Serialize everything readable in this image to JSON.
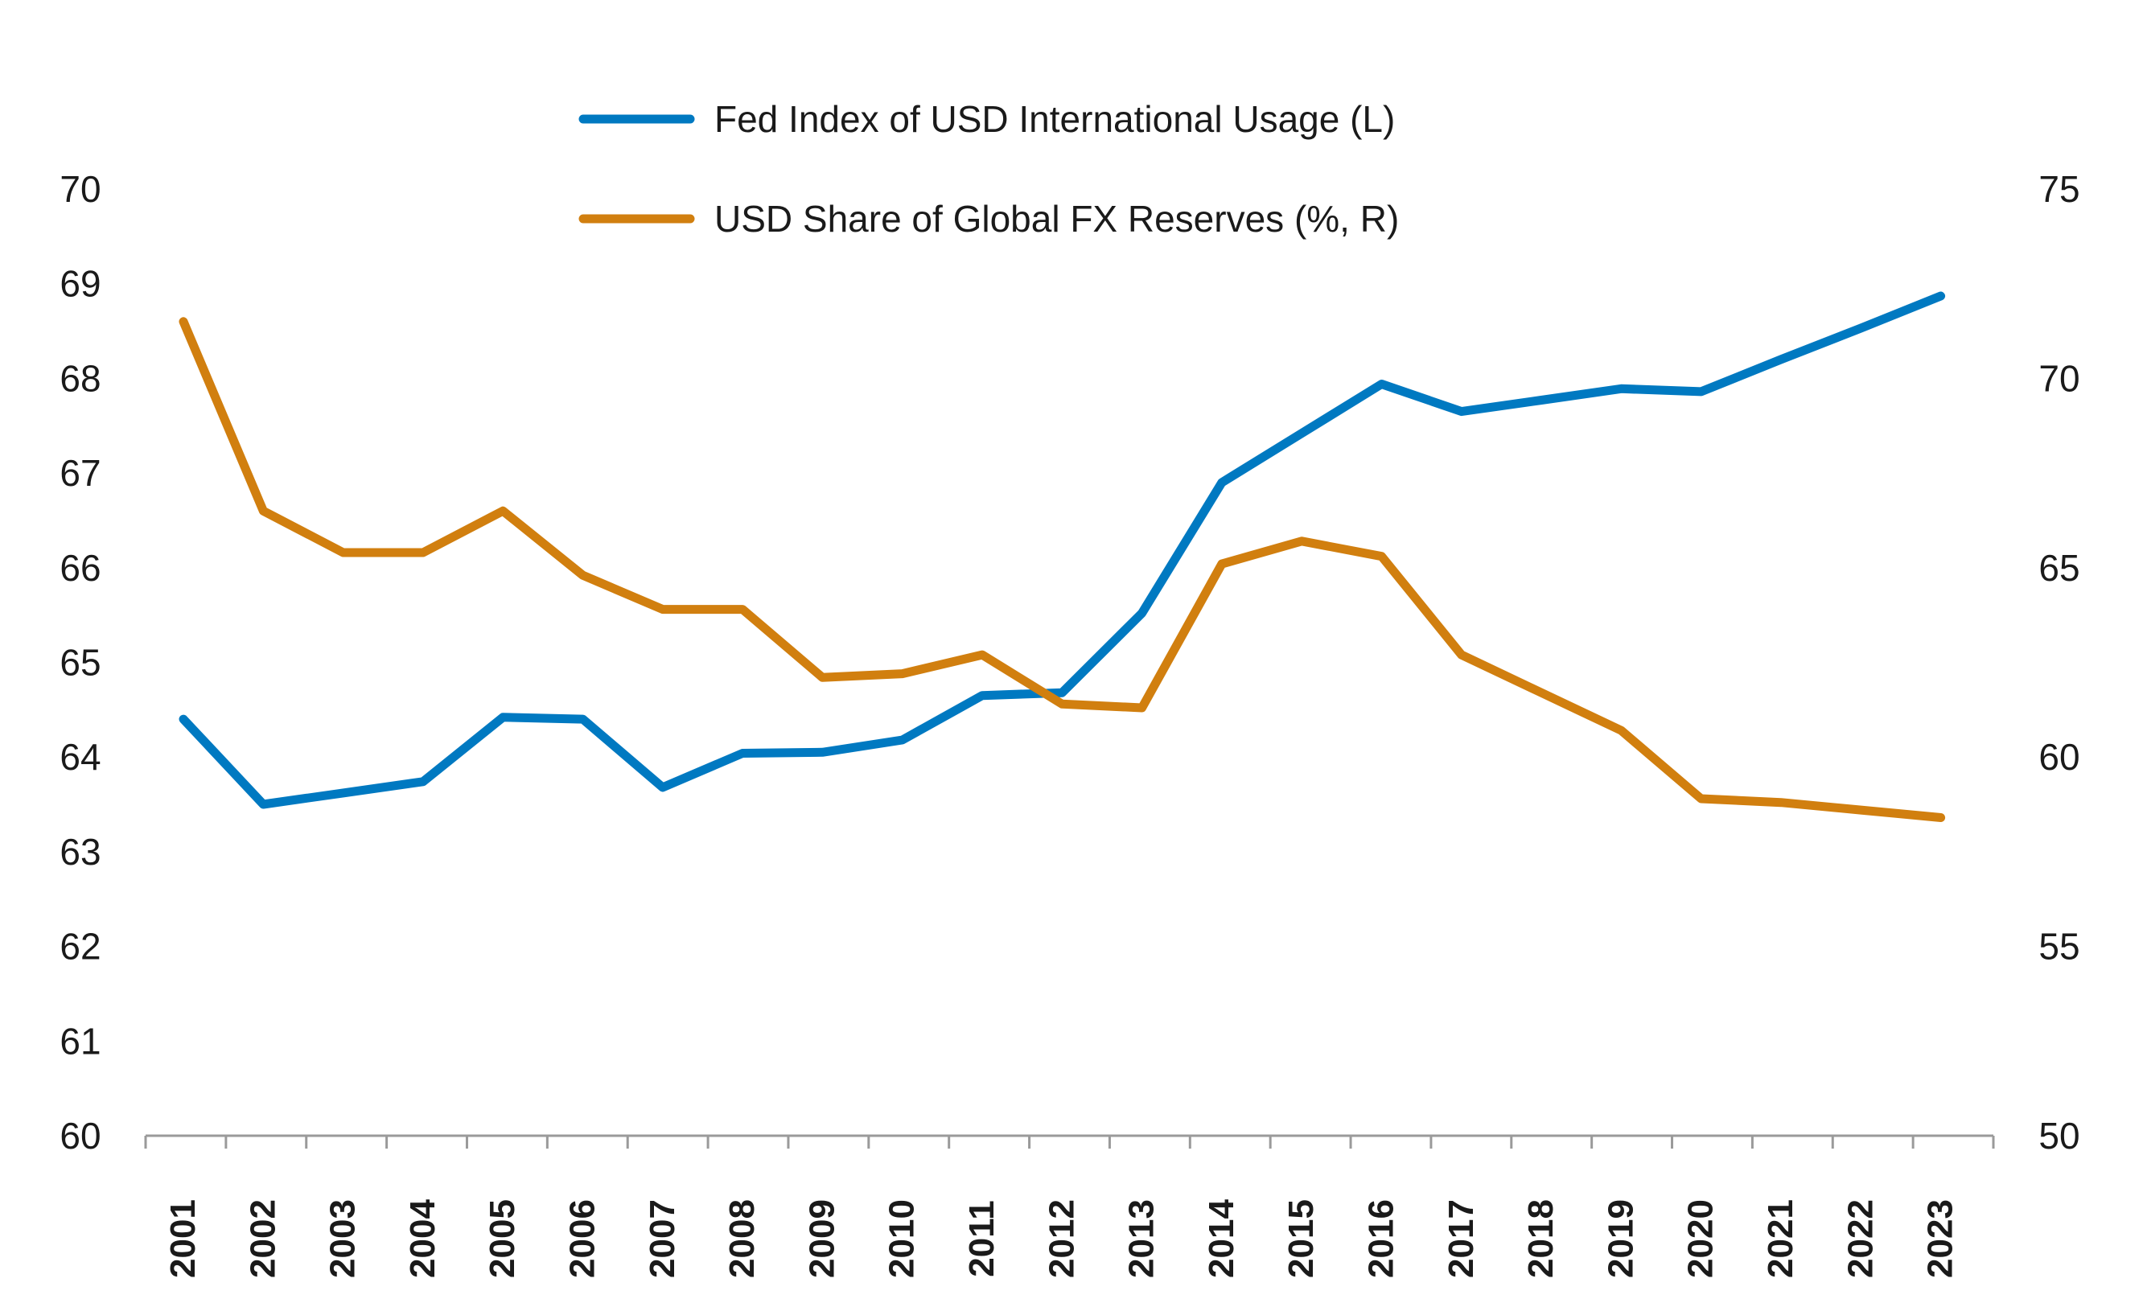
{
  "chart_data": {
    "type": "line",
    "title": "",
    "xlabel": "",
    "ylabel_left": "",
    "ylabel_right": "",
    "categories": [
      "2001",
      "2002",
      "2003",
      "2004",
      "2005",
      "2006",
      "2007",
      "2008",
      "2009",
      "2010",
      "2011",
      "2012",
      "2013",
      "2014",
      "2015",
      "2016",
      "2017",
      "2018",
      "2019",
      "2020",
      "2021",
      "2022",
      "2023"
    ],
    "y_left": {
      "min": 60,
      "max": 70,
      "ticks": [
        "60",
        "61",
        "62",
        "63",
        "64",
        "65",
        "66",
        "67",
        "68",
        "69",
        "70"
      ]
    },
    "y_right": {
      "min": 50,
      "max": 75,
      "ticks": [
        "50",
        "55",
        "60",
        "65",
        "70",
        "75"
      ]
    },
    "series": [
      {
        "name": "Fed Index of USD International Usage (L)",
        "axis": "left",
        "color": "#0079c1",
        "values": [
          64.4,
          63.5,
          63.62,
          63.74,
          64.42,
          64.4,
          63.68,
          64.04,
          64.05,
          64.18,
          64.65,
          64.68,
          65.52,
          66.9,
          67.42,
          67.94,
          67.65,
          67.77,
          67.89,
          67.86,
          68.2,
          68.53,
          68.87
        ]
      },
      {
        "name": "USD Share of Global FX Reserves (%, R)",
        "axis": "right",
        "color": "#d17f0f",
        "values": [
          71.5,
          66.5,
          65.4,
          65.4,
          66.5,
          64.8,
          63.9,
          63.9,
          62.1,
          62.2,
          62.7,
          61.4,
          61.3,
          65.1,
          65.7,
          65.3,
          62.7,
          61.7,
          60.7,
          58.9,
          58.8,
          58.6,
          58.4
        ]
      }
    ],
    "legend": "top-center",
    "grid": false
  }
}
